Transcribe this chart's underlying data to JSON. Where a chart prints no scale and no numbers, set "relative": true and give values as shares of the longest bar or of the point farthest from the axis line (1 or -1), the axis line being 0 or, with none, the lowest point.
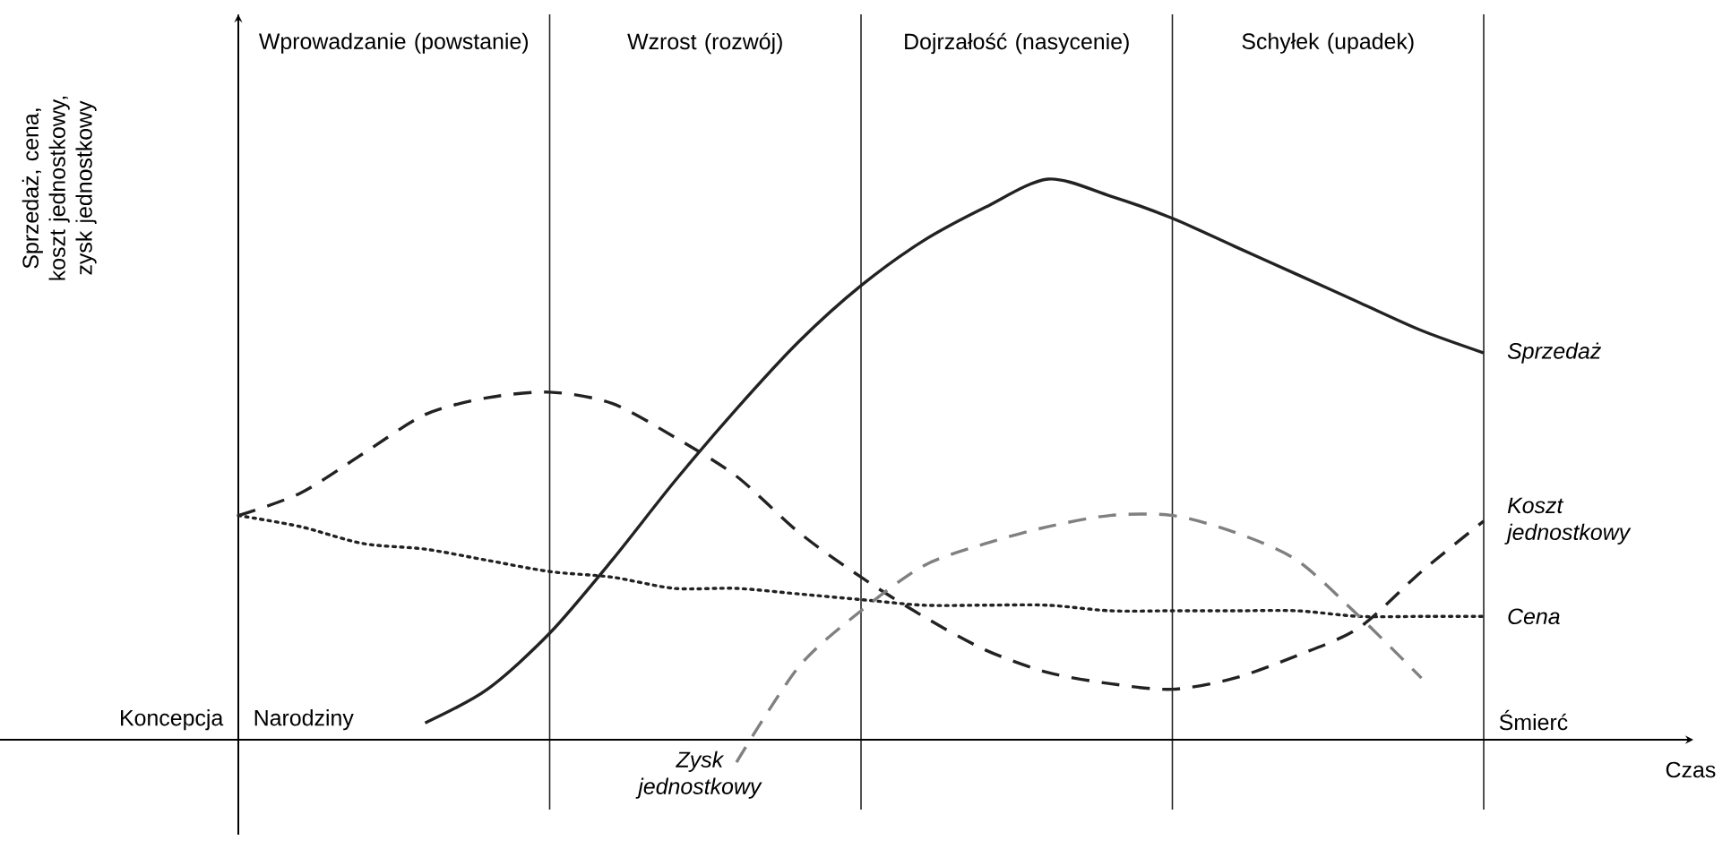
{
  "chart_data": {
    "type": "line",
    "relative": true,
    "ylabel": "Sprzedaż, cena, koszt jednostkowy, zysk jednostkowy",
    "grid": "x",
    "categories": [
      null,
      null,
      null,
      null,
      null,
      null,
      null,
      null,
      null,
      null,
      null,
      null,
      null,
      null,
      null,
      null,
      null,
      null,
      null,
      null,
      null
    ],
    "series": [
      {
        "name": "Sprzedaż",
        "color": "#222222",
        "line_style": "solid",
        "values": [
          null,
          null,
          null,
          0.03,
          0.09,
          0.19,
          0.32,
          0.46,
          0.59,
          0.71,
          0.81,
          0.89,
          0.95,
          1.0,
          0.97,
          0.93,
          0.88,
          0.83,
          0.78,
          0.73,
          0.69
        ]
      },
      {
        "name": "Koszt jednostkowy",
        "color": "#222222",
        "line_style": "dashed",
        "values": [
          0.4,
          0.44,
          0.51,
          0.58,
          0.61,
          0.62,
          0.6,
          0.54,
          0.47,
          0.37,
          0.29,
          0.22,
          0.16,
          0.12,
          0.1,
          0.09,
          0.11,
          0.15,
          0.2,
          0.3,
          0.39
        ]
      },
      {
        "name": "Cena",
        "color": "#222222",
        "line_style": "dotted",
        "values": [
          0.4,
          0.38,
          0.35,
          0.34,
          0.32,
          0.3,
          0.29,
          0.27,
          0.27,
          0.26,
          0.25,
          0.24,
          0.24,
          0.24,
          0.23,
          0.23,
          0.23,
          0.23,
          0.22,
          0.22,
          0.22
        ]
      },
      {
        "name": "Zysk jednostkowy",
        "color": "#808080",
        "line_style": "dashed",
        "values": [
          null,
          null,
          null,
          null,
          null,
          null,
          null,
          null,
          -0.04,
          0.13,
          0.23,
          0.31,
          0.35,
          0.38,
          0.4,
          0.4,
          0.37,
          0.32,
          0.22,
          0.11,
          null
        ]
      }
    ],
    "annotations": [
      "Wprowadzanie (powstanie)",
      "Wzrost (rozwój)",
      "Dojrzałość (nasycenie)",
      "Schyłek (upadek)",
      "Koncepcja",
      "Narodziny",
      "Śmierć",
      "Czas"
    ]
  }
}
